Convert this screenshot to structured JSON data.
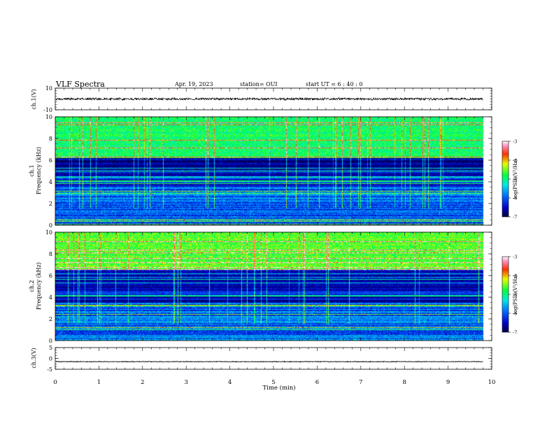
{
  "header": {
    "title": "VLF Spectra",
    "date": "Apr. 19, 2023",
    "station": "station= OUI",
    "start": "start  UT  =   6  : 40 : 0"
  },
  "chart_data": [
    {
      "type": "line",
      "panel": "ch1-waveform",
      "ylabel": "ch.1(V)",
      "ylim": [
        -10,
        10
      ],
      "y_ticks": [
        "10",
        "-10"
      ],
      "baseline": 0,
      "noise_amplitude": 1.2
    },
    {
      "type": "heatmap",
      "panel": "ch1-spectrogram",
      "ylabel_line1": "ch.1",
      "ylabel_line2": "Frequency  (kHz)",
      "ylim": [
        0,
        10
      ],
      "y_ticks": [
        "0",
        "2",
        "4",
        "6",
        "8",
        "10"
      ],
      "xlim": [
        0,
        10
      ],
      "data_end_min": 9.8,
      "colorbar": {
        "label": "log(PSD)(V²/Hz)",
        "range": [
          -7,
          -3
        ],
        "ticks": [
          "-3",
          "-4",
          "-5",
          "-6",
          "-7"
        ]
      },
      "bright_band_khz": [
        6.2,
        10
      ],
      "bright_band_start_min": 0,
      "bright_band_level": -4.9
    },
    {
      "type": "heatmap",
      "panel": "ch2-spectrogram",
      "ylabel_line1": "ch.2",
      "ylabel_line2": "Frequency  (kHz)",
      "ylim": [
        0,
        10
      ],
      "y_ticks": [
        "0",
        "2",
        "4",
        "6",
        "8",
        "10"
      ],
      "xlim": [
        0,
        10
      ],
      "data_end_min": 9.8,
      "colorbar": {
        "label": "log(PSD)(V²/Hz)",
        "range": [
          -7,
          -3
        ],
        "ticks": [
          "-3",
          "-4",
          "-5",
          "-6",
          "-7"
        ]
      },
      "bright_band_khz": [
        6.5,
        10
      ],
      "bright_band_start_min": 0,
      "bright_band_level": -4.6
    },
    {
      "type": "line",
      "panel": "ch3-waveform",
      "ylabel": "ch.3(V)",
      "ylim": [
        -5,
        5
      ],
      "y_ticks": [
        "5",
        "0",
        "-5"
      ],
      "baseline": -1.5,
      "noise_amplitude": 0.2
    }
  ],
  "x_axis": {
    "label": "Time  (min)",
    "ticks": [
      "0",
      "1",
      "2",
      "3",
      "4",
      "5",
      "6",
      "7",
      "8",
      "9",
      "10"
    ]
  },
  "colors": {
    "background": "#ffffff",
    "ink": "#000000"
  }
}
